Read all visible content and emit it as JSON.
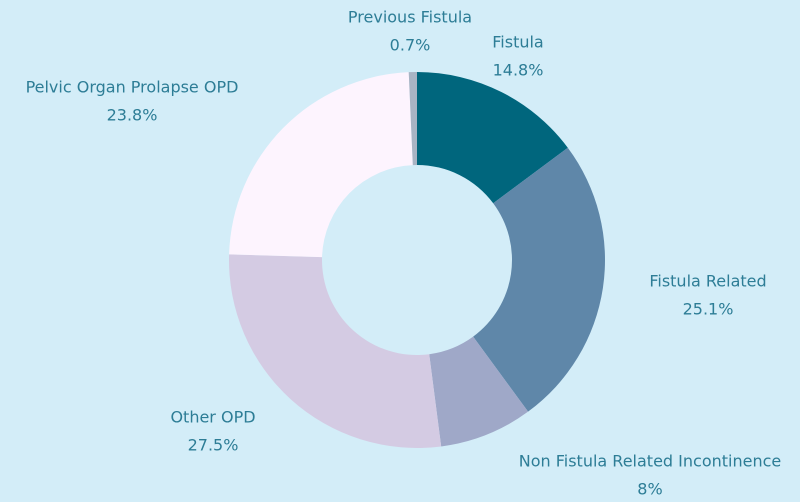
{
  "chart_data": {
    "type": "donut",
    "categories": [
      "Fistula",
      "Fistula Related",
      "Non Fistula Related Incontinence",
      "Other OPD",
      "Pelvic Organ Prolapse OPD",
      "Previous Fistula"
    ],
    "values": [
      14.8,
      25.1,
      8,
      27.5,
      23.8,
      0.7
    ],
    "value_labels": [
      "14.8%",
      "25.1%",
      "8%",
      "27.5%",
      "23.8%",
      "0.7%"
    ],
    "colors": [
      "#00667d",
      "#5f87a9",
      "#9fa8c8",
      "#d4cbe3",
      "#fdf4fe",
      "#a9b4c4"
    ]
  }
}
